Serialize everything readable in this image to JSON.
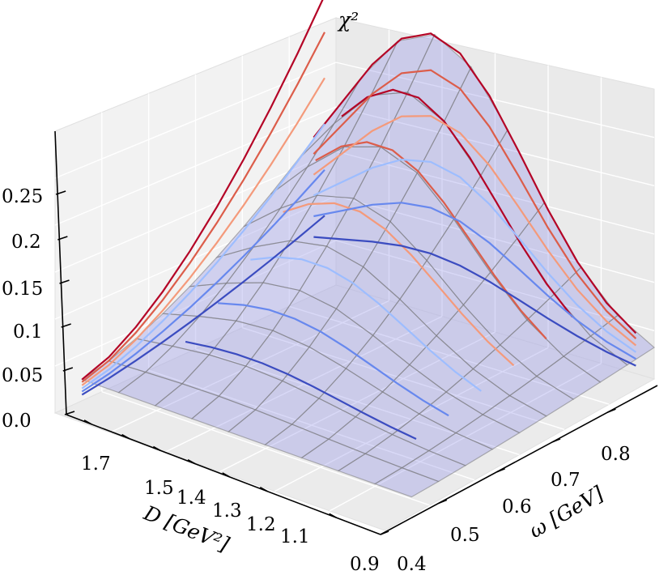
{
  "chart_data": {
    "type": "surface3d",
    "title": "",
    "zlabel": "χ²",
    "xlabel": "D [GeV²]",
    "ylabel": "ω [GeV]",
    "zticks": [
      "0.0",
      "0.05",
      "0.1",
      "0.15",
      "0.2",
      "0.25"
    ],
    "dticks": [
      "1.7",
      "1.5",
      "1.4",
      "1.3",
      "1.2",
      "1.1",
      "0.9"
    ],
    "wticks": [
      "0.4",
      "0.5",
      "0.6",
      "0.7",
      "0.8"
    ],
    "zlim": [
      0,
      0.3
    ],
    "xlim": [
      0.9,
      1.8
    ],
    "ylim": [
      0.4,
      0.9
    ],
    "grid": true,
    "surface_color": "#8a8ae6",
    "colormap": "coolwarm",
    "surface": {
      "D": [
        0.9,
        1.0,
        1.1,
        1.2,
        1.3,
        1.4,
        1.5,
        1.6,
        1.7,
        1.8
      ],
      "omega": [
        0.45,
        0.5,
        0.55,
        0.6,
        0.65,
        0.7,
        0.75,
        0.8,
        0.85,
        0.9
      ],
      "z_peak": 0.29,
      "z_min": 0.0
    },
    "contours": [
      {
        "level": 0.29,
        "color": "#b40426"
      },
      {
        "level": 0.25,
        "color": "#dc5d4a"
      },
      {
        "level": 0.2,
        "color": "#f49a7b"
      },
      {
        "level": 0.15,
        "color": "#9dbdff"
      },
      {
        "level": 0.1,
        "color": "#6788ee"
      },
      {
        "level": 0.05,
        "color": "#3b4cc0"
      }
    ]
  }
}
